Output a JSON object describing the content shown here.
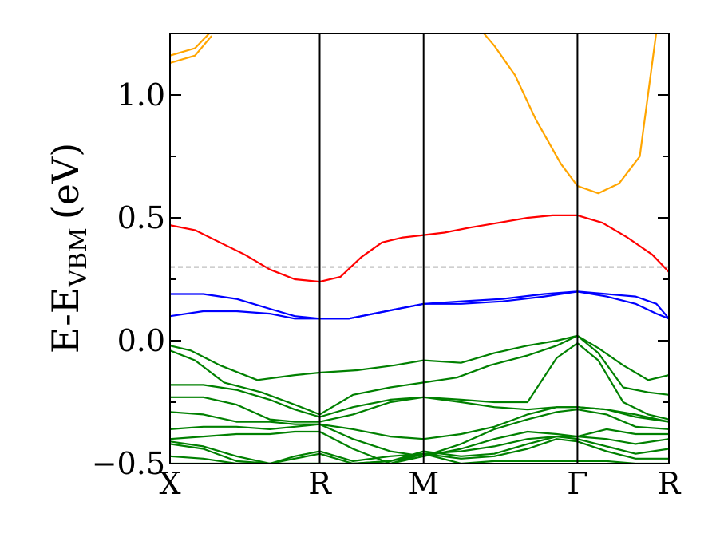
{
  "chart_data": {
    "type": "line",
    "title": "",
    "ylabel": "E-E",
    "ylabel_subscript": "VBM",
    "ylabel_unit": "(eV)",
    "ylim": [
      -0.5,
      1.25
    ],
    "y_ticks": [
      {
        "value": 1.0,
        "label": "1.0"
      },
      {
        "value": 0.5,
        "label": "0.5"
      },
      {
        "value": 0.0,
        "label": "0.0"
      },
      {
        "value": -0.5,
        "label": "−0.5"
      }
    ],
    "y_minor_ticks": [
      0.75,
      0.25,
      -0.25
    ],
    "x_range": [
      0,
      12
    ],
    "kpoints": [
      {
        "label": "X",
        "x": 0
      },
      {
        "label": "R",
        "x": 3.6
      },
      {
        "label": "M",
        "x": 6.1
      },
      {
        "label": "Γ",
        "x": 9.8
      },
      {
        "label": "R",
        "x": 12
      }
    ],
    "reference_line": {
      "y": 0.3,
      "style": "dashed",
      "color": "#808080"
    },
    "grid": false,
    "legend": "none",
    "colors": {
      "conduction_upper": "#ffa500",
      "conduction_band": "#ff0000",
      "upper_valence": "#0000ff",
      "valence": "#008000"
    },
    "series": [
      {
        "color": "#ffa500",
        "x": [
          0,
          0.6,
          1.0
        ],
        "y": [
          1.16,
          1.19,
          1.26
        ]
      },
      {
        "color": "#ffa500",
        "x": [
          0,
          0.6,
          1.0
        ],
        "y": [
          1.13,
          1.16,
          1.24
        ]
      },
      {
        "color": "#ffa500",
        "x": [
          7.5,
          7.8,
          8.3,
          8.8,
          9.4,
          9.8,
          10.3,
          10.8,
          11.3,
          11.7
        ],
        "y": [
          1.26,
          1.2,
          1.08,
          0.9,
          0.72,
          0.63,
          0.6,
          0.64,
          0.75,
          1.26
        ]
      },
      {
        "color": "#ff0000",
        "x": [
          0,
          0.6,
          1.2,
          1.8,
          2.4,
          3.0,
          3.6,
          4.1,
          4.6,
          5.1,
          5.6,
          6.1,
          6.6,
          7.2,
          7.9,
          8.6,
          9.2,
          9.8,
          10.4,
          11.0,
          11.6,
          12.0
        ],
        "y": [
          0.47,
          0.45,
          0.4,
          0.35,
          0.29,
          0.25,
          0.24,
          0.26,
          0.34,
          0.4,
          0.42,
          0.43,
          0.44,
          0.46,
          0.48,
          0.5,
          0.51,
          0.51,
          0.48,
          0.42,
          0.35,
          0.28
        ]
      },
      {
        "color": "#0000ff",
        "x": [
          0,
          0.8,
          1.6,
          2.4,
          3.0,
          3.6,
          4.3,
          5.2,
          6.1,
          7.0,
          8.0,
          9.0,
          9.8,
          10.5,
          11.2,
          11.7,
          12.0
        ],
        "y": [
          0.19,
          0.19,
          0.17,
          0.13,
          0.1,
          0.09,
          0.09,
          0.12,
          0.15,
          0.16,
          0.17,
          0.19,
          0.2,
          0.19,
          0.18,
          0.15,
          0.09
        ]
      },
      {
        "color": "#0000ff",
        "x": [
          0,
          0.8,
          1.6,
          2.4,
          3.0,
          3.6,
          4.3,
          5.2,
          6.1,
          7.0,
          8.0,
          9.0,
          9.8,
          10.5,
          11.2,
          11.7,
          12.0
        ],
        "y": [
          0.1,
          0.12,
          0.12,
          0.11,
          0.09,
          0.09,
          0.09,
          0.12,
          0.15,
          0.15,
          0.16,
          0.18,
          0.2,
          0.18,
          0.15,
          0.11,
          0.09
        ]
      },
      {
        "color": "#008000",
        "x": [
          0,
          0.5,
          1.2,
          2.1,
          3.0,
          3.6,
          4.5,
          5.4,
          6.1,
          7.0,
          7.8,
          8.6,
          9.3,
          9.8,
          10.3,
          10.9,
          11.5,
          12.0
        ],
        "y": [
          -0.02,
          -0.04,
          -0.1,
          -0.16,
          -0.14,
          -0.13,
          -0.12,
          -0.1,
          -0.08,
          -0.09,
          -0.05,
          -0.02,
          0.0,
          0.02,
          -0.03,
          -0.1,
          -0.16,
          -0.14
        ]
      },
      {
        "color": "#008000",
        "x": [
          0,
          0.6,
          1.3,
          2.2,
          3.0,
          3.6,
          4.4,
          5.3,
          6.1,
          6.9,
          7.7,
          8.6,
          9.3,
          9.8,
          10.3,
          10.9,
          11.5,
          12.0
        ],
        "y": [
          -0.04,
          -0.08,
          -0.17,
          -0.21,
          -0.26,
          -0.3,
          -0.22,
          -0.19,
          -0.17,
          -0.15,
          -0.1,
          -0.06,
          -0.02,
          0.02,
          -0.05,
          -0.19,
          -0.21,
          -0.22
        ]
      },
      {
        "color": "#008000",
        "x": [
          0,
          0.8,
          1.6,
          2.4,
          3.0,
          3.6,
          4.4,
          5.3,
          6.1,
          7.0,
          7.8,
          8.6,
          9.3,
          9.8,
          10.3,
          10.9,
          11.5,
          12.0
        ],
        "y": [
          -0.18,
          -0.18,
          -0.2,
          -0.24,
          -0.28,
          -0.31,
          -0.27,
          -0.24,
          -0.23,
          -0.24,
          -0.25,
          -0.25,
          -0.07,
          -0.01,
          -0.08,
          -0.25,
          -0.3,
          -0.32
        ]
      },
      {
        "color": "#008000",
        "x": [
          0,
          0.8,
          1.6,
          2.4,
          3.0,
          3.6,
          4.4,
          5.3,
          6.1,
          7.0,
          7.8,
          8.6,
          9.3,
          9.8,
          10.5,
          11.2,
          12.0
        ],
        "y": [
          -0.23,
          -0.23,
          -0.26,
          -0.32,
          -0.33,
          -0.33,
          -0.3,
          -0.25,
          -0.23,
          -0.25,
          -0.27,
          -0.28,
          -0.27,
          -0.27,
          -0.28,
          -0.31,
          -0.33
        ]
      },
      {
        "color": "#008000",
        "x": [
          0,
          0.8,
          1.6,
          2.4,
          3.0,
          3.6,
          4.4,
          5.3,
          6.1,
          7.0,
          7.8,
          8.6,
          9.3,
          9.8,
          10.5,
          11.2,
          12.0
        ],
        "y": [
          -0.29,
          -0.3,
          -0.33,
          -0.33,
          -0.34,
          -0.34,
          -0.36,
          -0.39,
          -0.4,
          -0.38,
          -0.35,
          -0.3,
          -0.27,
          -0.27,
          -0.28,
          -0.3,
          -0.33
        ]
      },
      {
        "color": "#008000",
        "x": [
          0,
          0.8,
          1.6,
          2.4,
          3.0,
          3.6,
          4.4,
          5.3,
          6.1,
          7.0,
          7.8,
          8.6,
          9.3,
          9.8,
          10.5,
          11.2,
          12.0
        ],
        "y": [
          -0.36,
          -0.35,
          -0.35,
          -0.36,
          -0.35,
          -0.34,
          -0.4,
          -0.45,
          -0.47,
          -0.42,
          -0.36,
          -0.32,
          -0.29,
          -0.28,
          -0.3,
          -0.35,
          -0.36
        ]
      },
      {
        "color": "#008000",
        "x": [
          0,
          0.8,
          1.6,
          2.4,
          3.0,
          3.6,
          4.4,
          5.3,
          6.1,
          7.0,
          7.8,
          8.6,
          9.3,
          9.8,
          10.5,
          11.2,
          12.0
        ],
        "y": [
          -0.4,
          -0.39,
          -0.38,
          -0.38,
          -0.37,
          -0.37,
          -0.44,
          -0.5,
          -0.47,
          -0.44,
          -0.4,
          -0.37,
          -0.38,
          -0.39,
          -0.36,
          -0.38,
          -0.38
        ]
      },
      {
        "color": "#008000",
        "x": [
          0,
          0.8,
          1.6,
          2.4,
          3.0,
          3.6,
          4.4,
          5.3,
          6.1,
          7.0,
          7.8,
          8.6,
          9.3,
          9.8,
          10.5,
          11.2,
          12.0
        ],
        "y": [
          -0.41,
          -0.43,
          -0.47,
          -0.5,
          -0.47,
          -0.45,
          -0.49,
          -0.47,
          -0.46,
          -0.45,
          -0.43,
          -0.4,
          -0.39,
          -0.39,
          -0.4,
          -0.42,
          -0.4
        ]
      },
      {
        "color": "#008000",
        "x": [
          0,
          0.8,
          1.6,
          2.4,
          3.0,
          3.6,
          4.4,
          5.3,
          6.1,
          7.0,
          7.8,
          8.6,
          9.3,
          9.8,
          10.5,
          11.2,
          12.0
        ],
        "y": [
          -0.42,
          -0.44,
          -0.49,
          -0.5,
          -0.48,
          -0.46,
          -0.5,
          -0.49,
          -0.45,
          -0.47,
          -0.46,
          -0.42,
          -0.39,
          -0.4,
          -0.43,
          -0.46,
          -0.44
        ]
      },
      {
        "color": "#008000",
        "x": [
          0,
          0.8,
          1.6,
          2.4,
          3.0,
          3.6,
          4.4,
          5.3,
          6.1,
          7.0,
          7.8,
          8.6,
          9.3,
          9.8,
          10.5,
          11.2,
          12.0
        ],
        "y": [
          -0.47,
          -0.48,
          -0.5,
          -0.5,
          -0.5,
          -0.5,
          -0.5,
          -0.49,
          -0.46,
          -0.48,
          -0.47,
          -0.44,
          -0.4,
          -0.41,
          -0.45,
          -0.48,
          -0.48
        ]
      },
      {
        "color": "#008000",
        "x": [
          0,
          1.0,
          2.0,
          3.0,
          3.6,
          4.4,
          5.3,
          6.1,
          7.0,
          7.8,
          8.6,
          9.3,
          9.8,
          10.5,
          11.2,
          12.0
        ],
        "y": [
          -0.5,
          -0.5,
          -0.5,
          -0.5,
          -0.5,
          -0.5,
          -0.5,
          -0.46,
          -0.5,
          -0.49,
          -0.49,
          -0.49,
          -0.49,
          -0.49,
          -0.5,
          -0.5
        ]
      }
    ]
  }
}
